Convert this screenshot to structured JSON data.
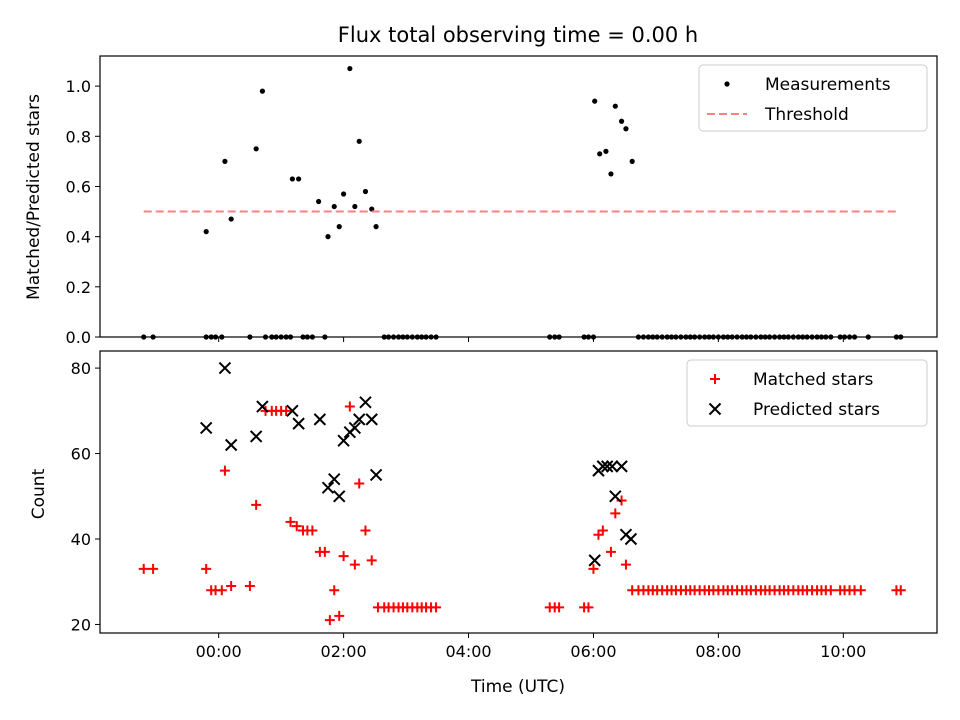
{
  "chart_data": {
    "title": "Flux total observing time = 0.00 h",
    "xlabel": "Time (UTC)",
    "xlim": [
      -1.9,
      11.5
    ],
    "xticks": [
      0,
      2,
      4,
      6,
      8,
      10
    ],
    "xtick_labels": [
      "00:00",
      "02:00",
      "04:00",
      "06:00",
      "08:00",
      "10:00"
    ],
    "panels": [
      {
        "type": "scatter",
        "ylabel": "Matched/Predicted stars",
        "ylim": [
          0,
          1.12
        ],
        "yticks": [
          0.0,
          0.2,
          0.4,
          0.6,
          0.8,
          1.0
        ],
        "ytick_labels": [
          "0.0",
          "0.2",
          "0.4",
          "0.6",
          "0.8",
          "1.0"
        ],
        "legend": "top-right",
        "series": [
          {
            "name": "Measurements",
            "marker": "dot",
            "color": "#000000",
            "points": [
              [
                -1.2,
                0
              ],
              [
                -1.05,
                0
              ],
              [
                -0.2,
                0
              ],
              [
                -0.12,
                0
              ],
              [
                -0.05,
                0
              ],
              [
                0.05,
                0
              ],
              [
                0.5,
                0
              ],
              [
                0.75,
                0
              ],
              [
                0.85,
                0
              ],
              [
                0.92,
                0
              ],
              [
                1.0,
                0
              ],
              [
                1.08,
                0
              ],
              [
                1.15,
                0
              ],
              [
                1.35,
                0
              ],
              [
                1.42,
                0
              ],
              [
                1.5,
                0
              ],
              [
                1.7,
                0
              ],
              [
                2.65,
                0
              ],
              [
                2.72,
                0
              ],
              [
                2.8,
                0
              ],
              [
                2.88,
                0
              ],
              [
                2.95,
                0
              ],
              [
                3.02,
                0
              ],
              [
                3.1,
                0
              ],
              [
                3.18,
                0
              ],
              [
                3.25,
                0
              ],
              [
                3.32,
                0
              ],
              [
                3.4,
                0
              ],
              [
                3.48,
                0
              ],
              [
                5.3,
                0
              ],
              [
                5.38,
                0
              ],
              [
                5.45,
                0
              ],
              [
                5.85,
                0
              ],
              [
                5.92,
                0
              ],
              [
                6.0,
                0
              ],
              [
                6.72,
                0
              ],
              [
                6.8,
                0
              ],
              [
                6.88,
                0
              ],
              [
                6.95,
                0
              ],
              [
                7.02,
                0
              ],
              [
                7.1,
                0
              ],
              [
                7.18,
                0
              ],
              [
                7.25,
                0
              ],
              [
                7.32,
                0
              ],
              [
                7.4,
                0
              ],
              [
                7.48,
                0
              ],
              [
                7.55,
                0
              ],
              [
                7.62,
                0
              ],
              [
                7.7,
                0
              ],
              [
                7.78,
                0
              ],
              [
                7.85,
                0
              ],
              [
                7.92,
                0
              ],
              [
                8.0,
                0
              ],
              [
                8.08,
                0
              ],
              [
                8.15,
                0
              ],
              [
                8.22,
                0
              ],
              [
                8.3,
                0
              ],
              [
                8.38,
                0
              ],
              [
                8.45,
                0
              ],
              [
                8.52,
                0
              ],
              [
                8.6,
                0
              ],
              [
                8.68,
                0
              ],
              [
                8.75,
                0
              ],
              [
                8.82,
                0
              ],
              [
                8.9,
                0
              ],
              [
                8.98,
                0
              ],
              [
                9.05,
                0
              ],
              [
                9.12,
                0
              ],
              [
                9.2,
                0
              ],
              [
                9.28,
                0
              ],
              [
                9.35,
                0
              ],
              [
                9.42,
                0
              ],
              [
                9.5,
                0
              ],
              [
                9.58,
                0
              ],
              [
                9.65,
                0
              ],
              [
                9.72,
                0
              ],
              [
                9.8,
                0
              ],
              [
                9.95,
                0
              ],
              [
                10.02,
                0
              ],
              [
                10.1,
                0
              ],
              [
                10.18,
                0
              ],
              [
                10.4,
                0
              ],
              [
                10.85,
                0
              ],
              [
                10.92,
                0
              ],
              [
                -0.2,
                0.42
              ],
              [
                0.1,
                0.7
              ],
              [
                0.2,
                0.47
              ],
              [
                0.6,
                0.75
              ],
              [
                0.7,
                0.98
              ],
              [
                1.18,
                0.63
              ],
              [
                1.28,
                0.63
              ],
              [
                1.6,
                0.54
              ],
              [
                1.75,
                0.4
              ],
              [
                1.85,
                0.52
              ],
              [
                1.93,
                0.44
              ],
              [
                2.0,
                0.57
              ],
              [
                2.1,
                1.07
              ],
              [
                2.18,
                0.52
              ],
              [
                2.25,
                0.78
              ],
              [
                2.35,
                0.58
              ],
              [
                2.45,
                0.51
              ],
              [
                2.52,
                0.44
              ],
              [
                6.02,
                0.94
              ],
              [
                6.1,
                0.73
              ],
              [
                6.2,
                0.74
              ],
              [
                6.28,
                0.65
              ],
              [
                6.35,
                0.92
              ],
              [
                6.45,
                0.86
              ],
              [
                6.52,
                0.83
              ],
              [
                6.62,
                0.7
              ]
            ]
          },
          {
            "name": "Threshold",
            "style": "dashed",
            "color": "#ff8080",
            "points": [
              [
                -1.2,
                0.5
              ],
              [
                10.9,
                0.5
              ]
            ]
          }
        ]
      },
      {
        "type": "scatter",
        "ylabel": "Count",
        "ylim": [
          18,
          84
        ],
        "yticks": [
          20,
          40,
          60,
          80
        ],
        "ytick_labels": [
          "20",
          "40",
          "60",
          "80"
        ],
        "legend": "top-right",
        "series": [
          {
            "name": "Matched stars",
            "marker": "plus",
            "color": "#ff0000",
            "points": [
              [
                -1.2,
                33
              ],
              [
                -1.05,
                33
              ],
              [
                -0.2,
                33
              ],
              [
                -0.12,
                28
              ],
              [
                -0.05,
                28
              ],
              [
                0.05,
                28
              ],
              [
                0.1,
                56
              ],
              [
                0.2,
                29
              ],
              [
                0.5,
                29
              ],
              [
                0.6,
                48
              ],
              [
                0.75,
                70
              ],
              [
                0.85,
                70
              ],
              [
                0.92,
                70
              ],
              [
                1.0,
                70
              ],
              [
                1.08,
                70
              ],
              [
                1.15,
                44
              ],
              [
                1.25,
                43
              ],
              [
                1.35,
                42
              ],
              [
                1.42,
                42
              ],
              [
                1.5,
                42
              ],
              [
                1.62,
                37
              ],
              [
                1.7,
                37
              ],
              [
                1.78,
                21
              ],
              [
                1.85,
                28
              ],
              [
                1.93,
                22
              ],
              [
                2.0,
                36
              ],
              [
                2.1,
                71
              ],
              [
                2.18,
                34
              ],
              [
                2.25,
                53
              ],
              [
                2.35,
                42
              ],
              [
                2.45,
                35
              ],
              [
                2.55,
                24
              ],
              [
                2.65,
                24
              ],
              [
                2.72,
                24
              ],
              [
                2.8,
                24
              ],
              [
                2.88,
                24
              ],
              [
                2.95,
                24
              ],
              [
                3.02,
                24
              ],
              [
                3.1,
                24
              ],
              [
                3.18,
                24
              ],
              [
                3.25,
                24
              ],
              [
                3.32,
                24
              ],
              [
                3.4,
                24
              ],
              [
                3.48,
                24
              ],
              [
                5.3,
                24
              ],
              [
                5.38,
                24
              ],
              [
                5.45,
                24
              ],
              [
                5.85,
                24
              ],
              [
                5.92,
                24
              ],
              [
                6.0,
                33
              ],
              [
                6.08,
                41
              ],
              [
                6.15,
                42
              ],
              [
                6.28,
                37
              ],
              [
                6.35,
                46
              ],
              [
                6.45,
                49
              ],
              [
                6.52,
                34
              ],
              [
                6.62,
                28
              ],
              [
                6.72,
                28
              ],
              [
                6.8,
                28
              ],
              [
                6.88,
                28
              ],
              [
                6.95,
                28
              ],
              [
                7.02,
                28
              ],
              [
                7.1,
                28
              ],
              [
                7.18,
                28
              ],
              [
                7.25,
                28
              ],
              [
                7.32,
                28
              ],
              [
                7.4,
                28
              ],
              [
                7.48,
                28
              ],
              [
                7.55,
                28
              ],
              [
                7.62,
                28
              ],
              [
                7.7,
                28
              ],
              [
                7.78,
                28
              ],
              [
                7.85,
                28
              ],
              [
                7.92,
                28
              ],
              [
                8.0,
                28
              ],
              [
                8.08,
                28
              ],
              [
                8.15,
                28
              ],
              [
                8.22,
                28
              ],
              [
                8.3,
                28
              ],
              [
                8.38,
                28
              ],
              [
                8.45,
                28
              ],
              [
                8.52,
                28
              ],
              [
                8.6,
                28
              ],
              [
                8.68,
                28
              ],
              [
                8.75,
                28
              ],
              [
                8.82,
                28
              ],
              [
                8.9,
                28
              ],
              [
                8.98,
                28
              ],
              [
                9.05,
                28
              ],
              [
                9.12,
                28
              ],
              [
                9.2,
                28
              ],
              [
                9.28,
                28
              ],
              [
                9.35,
                28
              ],
              [
                9.42,
                28
              ],
              [
                9.5,
                28
              ],
              [
                9.58,
                28
              ],
              [
                9.65,
                28
              ],
              [
                9.72,
                28
              ],
              [
                9.8,
                28
              ],
              [
                9.95,
                28
              ],
              [
                10.02,
                28
              ],
              [
                10.1,
                28
              ],
              [
                10.18,
                28
              ],
              [
                10.28,
                28
              ],
              [
                10.85,
                28
              ],
              [
                10.92,
                28
              ]
            ]
          },
          {
            "name": "Predicted stars",
            "marker": "x",
            "color": "#000000",
            "points": [
              [
                -0.2,
                66
              ],
              [
                0.1,
                80
              ],
              [
                0.2,
                62
              ],
              [
                0.6,
                64
              ],
              [
                0.7,
                71
              ],
              [
                1.18,
                70
              ],
              [
                1.28,
                67
              ],
              [
                1.62,
                68
              ],
              [
                1.75,
                52
              ],
              [
                1.85,
                54
              ],
              [
                1.93,
                50
              ],
              [
                2.0,
                63
              ],
              [
                2.1,
                65
              ],
              [
                2.18,
                66
              ],
              [
                2.25,
                68
              ],
              [
                2.35,
                72
              ],
              [
                2.45,
                68
              ],
              [
                2.52,
                55
              ],
              [
                6.02,
                35
              ],
              [
                6.08,
                56
              ],
              [
                6.15,
                57
              ],
              [
                6.22,
                57
              ],
              [
                6.3,
                57
              ],
              [
                6.35,
                50
              ],
              [
                6.45,
                57
              ],
              [
                6.52,
                41
              ],
              [
                6.6,
                40
              ]
            ]
          }
        ]
      }
    ]
  }
}
